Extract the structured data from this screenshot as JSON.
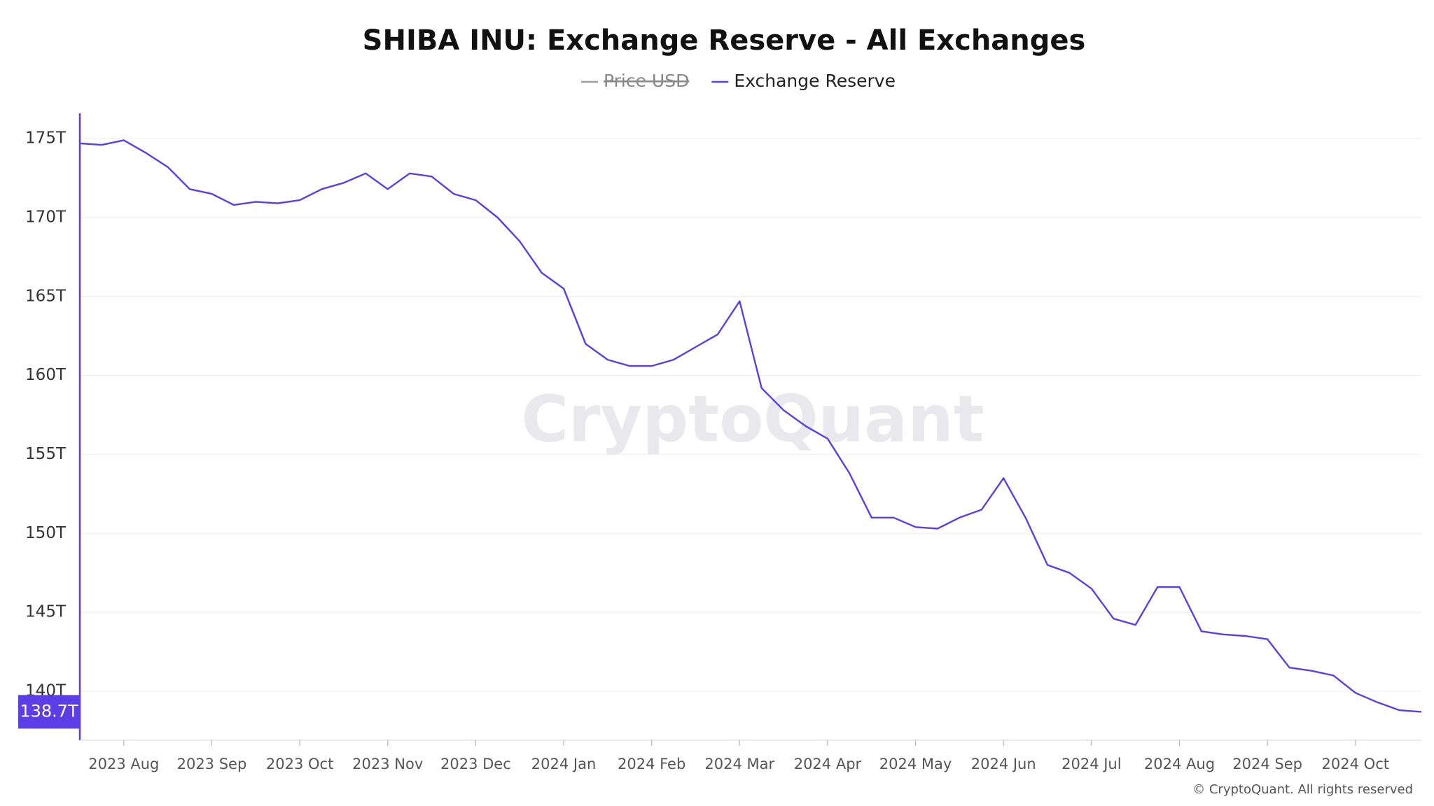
{
  "chart_data": {
    "type": "line",
    "title": "SHIBA INU: Exchange Reserve - All Exchanges",
    "legend_items": [
      {
        "name": "Price USD",
        "color": "#9e9e9e",
        "disabled": true
      }
    ],
    "categories": [
      null,
      null,
      "2023 Aug",
      null,
      null,
      null,
      "2023 Sep",
      null,
      null,
      null,
      "2023 Oct",
      null,
      null,
      null,
      "2023 Nov",
      null,
      null,
      null,
      "2023 Dec",
      null,
      null,
      null,
      "2024 Jan",
      null,
      null,
      null,
      "2024 Feb",
      null,
      null,
      null,
      "2024 Mar",
      null,
      null,
      null,
      "2024 Apr",
      null,
      null,
      null,
      "2024 May",
      null,
      null,
      null,
      "2024 Jun",
      null,
      null,
      null,
      "2024 Jul",
      null,
      null,
      null,
      "2024 Aug",
      null,
      null,
      null,
      "2024 Sep",
      null,
      null,
      null,
      "2024 Oct",
      null,
      null,
      null
    ],
    "series": [
      {
        "name": "Exchange Reserve",
        "color": "#5b3ee6",
        "values": [
          174.7,
          174.6,
          174.9,
          174.1,
          173.2,
          171.8,
          171.5,
          170.8,
          171.0,
          170.9,
          171.1,
          171.8,
          172.2,
          172.8,
          171.8,
          172.8,
          172.6,
          171.5,
          171.1,
          170.0,
          168.5,
          166.5,
          165.5,
          162.0,
          161.0,
          160.6,
          160.6,
          161.0,
          161.8,
          162.6,
          164.7,
          159.2,
          157.8,
          156.8,
          156.0,
          153.8,
          151.0,
          151.0,
          150.4,
          150.3,
          151.0,
          151.5,
          153.5,
          151.0,
          148.0,
          147.5,
          146.5,
          144.6,
          144.2,
          146.6,
          146.6,
          143.8,
          143.6,
          143.5,
          143.3,
          141.5,
          141.3,
          141.0,
          139.9,
          139.3,
          138.8,
          138.7
        ],
        "value_labels": [
          null,
          null,
          null,
          null,
          null,
          null,
          null,
          null,
          null,
          null,
          null,
          null,
          null,
          null,
          null,
          null,
          null,
          null,
          null,
          null,
          null,
          null,
          null,
          null,
          null,
          null,
          null,
          null,
          null,
          null,
          null,
          null,
          null,
          null,
          null,
          null,
          null,
          null,
          null,
          null,
          null,
          null,
          null,
          null,
          null,
          null,
          null,
          null,
          null,
          null,
          null,
          null,
          null,
          null,
          null,
          null,
          null,
          null,
          null,
          null,
          null,
          "138.7T"
        ]
      }
    ],
    "ylim": [
      136.9,
      176.6
    ],
    "yticks": [
      {
        "value": 140,
        "label": "140T"
      },
      {
        "value": 145,
        "label": "145T"
      },
      {
        "value": 150,
        "label": "150T"
      },
      {
        "value": 155,
        "label": "155T"
      },
      {
        "value": 160,
        "label": "160T"
      },
      {
        "value": 165,
        "label": "165T"
      },
      {
        "value": 170,
        "label": "170T"
      },
      {
        "value": 175,
        "label": "175T"
      }
    ],
    "grid": true,
    "watermark": "CryptoQuant",
    "footer": "© CryptoQuant. All rights reserved"
  }
}
